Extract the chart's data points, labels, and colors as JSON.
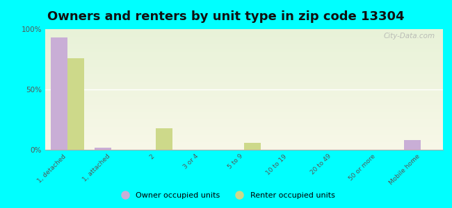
{
  "title": "Owners and renters by unit type in zip code 13304",
  "categories": [
    "1, detached",
    "1, attached",
    "2",
    "3 or 4",
    "5 to 9",
    "10 to 19",
    "20 to 49",
    "50 or more",
    "Mobile home"
  ],
  "owner_values": [
    93,
    2,
    0,
    0,
    0,
    0,
    0,
    0,
    8
  ],
  "renter_values": [
    76,
    0,
    18,
    0,
    6,
    0,
    0,
    0,
    0
  ],
  "owner_color": "#c9aed6",
  "renter_color": "#cdd98a",
  "background_color": "#00ffff",
  "plot_bg": "#e8f0d4",
  "ylim": [
    0,
    100
  ],
  "yticks": [
    0,
    50,
    100
  ],
  "ytick_labels": [
    "0%",
    "50%",
    "100%"
  ],
  "legend_owner": "Owner occupied units",
  "legend_renter": "Renter occupied units",
  "watermark": "City-Data.com",
  "bar_width": 0.38,
  "title_fontsize": 13
}
